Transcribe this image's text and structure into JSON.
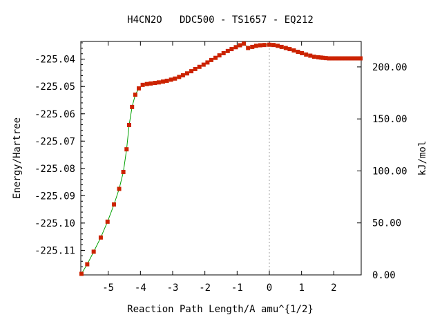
{
  "chart_data": {
    "type": "line",
    "title": "H4CN2O   DDC500 - TS1657 - EQ212",
    "xlabel": "Reaction Path Length/A amu^{1/2}",
    "ylabel": "Energy/Hartree",
    "y2label": "kJ/mol",
    "xlim": [
      -5.85,
      2.85
    ],
    "ylim": [
      -225.119,
      -225.0335
    ],
    "y2lim": [
      0,
      224.5
    ],
    "x_ticks": [
      -5,
      -4,
      -3,
      -2,
      -1,
      0,
      1,
      2
    ],
    "x_tick_labels": [
      "-5",
      "-4",
      "-3",
      "-2",
      "-1",
      "0",
      "1",
      "2"
    ],
    "y_ticks": [
      -225.11,
      -225.1,
      -225.09,
      -225.08,
      -225.07,
      -225.06,
      -225.05,
      -225.04
    ],
    "y_tick_labels": [
      "-225.11",
      "-225.10",
      "-225.09",
      "-225.08",
      "-225.07",
      "-225.06",
      "-225.05",
      "-225.04"
    ],
    "y2_ticks": [
      0,
      50,
      100,
      150,
      200
    ],
    "y2_tick_labels": [
      "0.00",
      "50.00",
      "100.00",
      "150.00",
      "200.00"
    ],
    "grid": false,
    "colors": {
      "line": "#00a000",
      "marker": "#cc2200",
      "zero_line": "#a0a0a0"
    },
    "series": [
      {
        "x": [
          -5.83,
          -5.65,
          -5.45,
          -5.23,
          -5.02,
          -4.82,
          -4.66,
          -4.53,
          -4.43,
          -4.35,
          -4.26,
          -4.16,
          -4.05,
          -3.93,
          -3.8,
          -3.68,
          -3.55,
          -3.43,
          -3.3,
          -3.18,
          -3.05,
          -2.93,
          -2.8,
          -2.68,
          -2.55,
          -2.42,
          -2.3,
          -2.17,
          -2.04,
          -1.92,
          -1.8,
          -1.67,
          -1.55,
          -1.42,
          -1.29,
          -1.17,
          -1.04,
          -0.91,
          -0.79,
          -0.66,
          -0.53,
          -0.41,
          -0.28,
          -0.15,
          0.0,
          0.13,
          0.26,
          0.38,
          0.51,
          0.63,
          0.76,
          0.89,
          1.01,
          1.14,
          1.27,
          1.39,
          1.52,
          1.6,
          1.66,
          1.75,
          1.85,
          1.95,
          2.05,
          2.15,
          2.25,
          2.35,
          2.45,
          2.55,
          2.65,
          2.75,
          2.83
        ],
        "y": [
          -225.1186,
          -225.1151,
          -225.1105,
          -225.1053,
          -225.0995,
          -225.0932,
          -225.0875,
          -225.0813,
          -225.073,
          -225.0641,
          -225.0575,
          -225.053,
          -225.0507,
          -225.0494,
          -225.0491,
          -225.0489,
          -225.0487,
          -225.0485,
          -225.0482,
          -225.0479,
          -225.0475,
          -225.0471,
          -225.0465,
          -225.0459,
          -225.0452,
          -225.0444,
          -225.0436,
          -225.0428,
          -225.042,
          -225.0412,
          -225.0403,
          -225.0395,
          -225.0386,
          -225.0378,
          -225.037,
          -225.0363,
          -225.0356,
          -225.0349,
          -225.0343,
          -225.0359,
          -225.0355,
          -225.0351,
          -225.0349,
          -225.0348,
          -225.0347,
          -225.0348,
          -225.0351,
          -225.0355,
          -225.0359,
          -225.0363,
          -225.0368,
          -225.0373,
          -225.0378,
          -225.0383,
          -225.0387,
          -225.0391,
          -225.0393,
          -225.0394,
          -225.0395,
          -225.0396,
          -225.0397,
          -225.0397,
          -225.0397,
          -225.0397,
          -225.0397,
          -225.0397,
          -225.0397,
          -225.0397,
          -225.0397,
          -225.0397,
          -225.0397
        ]
      }
    ]
  }
}
